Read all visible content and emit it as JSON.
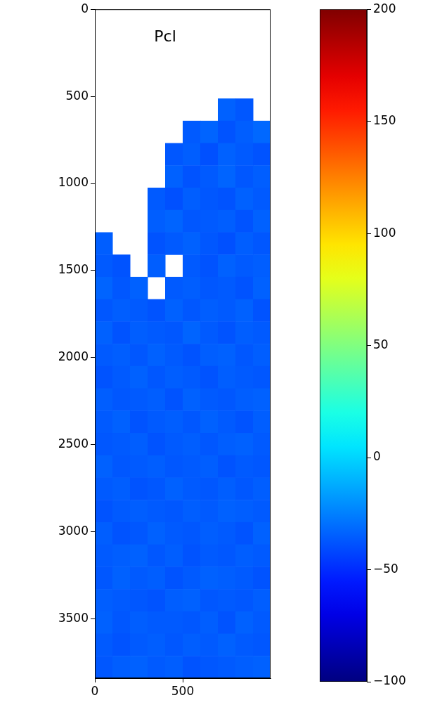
{
  "chart_data": {
    "type": "heatmap",
    "title": "Pcl",
    "x_bins": [
      0,
      100,
      200,
      300,
      400,
      500,
      600,
      700,
      800,
      900,
      1000
    ],
    "y_bins": [
      0,
      128,
      256,
      384,
      512,
      640,
      768,
      896,
      1024,
      1152,
      1280,
      1408,
      1536,
      1664,
      1792,
      1920,
      2048,
      2176,
      2304,
      2432,
      2560,
      2688,
      2816,
      2944,
      3072,
      3200,
      3328,
      3456,
      3584,
      3712,
      3840
    ],
    "cells": [
      [
        null,
        null,
        null,
        null,
        null,
        null,
        null,
        null,
        null,
        null
      ],
      [
        null,
        null,
        null,
        null,
        null,
        null,
        null,
        null,
        null,
        null
      ],
      [
        null,
        null,
        null,
        null,
        null,
        null,
        null,
        null,
        null,
        null
      ],
      [
        null,
        null,
        null,
        null,
        null,
        null,
        null,
        null,
        null,
        null
      ],
      [
        null,
        null,
        null,
        null,
        null,
        null,
        null,
        -34,
        -37,
        null
      ],
      [
        null,
        null,
        null,
        null,
        null,
        -36,
        -33,
        -38,
        -35,
        -32
      ],
      [
        null,
        null,
        null,
        null,
        -37,
        -35,
        -39,
        -34,
        -36,
        -38
      ],
      [
        null,
        null,
        null,
        null,
        -34,
        -38,
        -36,
        -33,
        -37,
        -35
      ],
      [
        null,
        null,
        null,
        -36,
        -39,
        -35,
        -37,
        -38,
        -34,
        -36
      ],
      [
        null,
        null,
        null,
        -35,
        -33,
        -37,
        -36,
        -35,
        -38,
        -34
      ],
      [
        -35,
        null,
        null,
        -38,
        -36,
        -34,
        -37,
        -39,
        -35,
        -37
      ],
      [
        -36,
        -38,
        null,
        -35,
        null,
        -36,
        -38,
        -34,
        -36,
        -35
      ],
      [
        -33,
        -37,
        -34,
        null,
        -36,
        -35,
        -37,
        -36,
        -38,
        -34
      ],
      [
        -37,
        -35,
        -36,
        -38,
        -34,
        -37,
        -35,
        -36,
        -34,
        -38
      ],
      [
        -34,
        -38,
        -35,
        -36,
        -37,
        -33,
        -36,
        -38,
        -35,
        -36
      ],
      [
        -36,
        -35,
        -37,
        -34,
        -36,
        -38,
        -35,
        -34,
        -37,
        -35
      ],
      [
        -38,
        -36,
        -34,
        -37,
        -35,
        -36,
        -38,
        -35,
        -36,
        -37
      ],
      [
        -35,
        -37,
        -36,
        -35,
        -38,
        -34,
        -36,
        -37,
        -35,
        -34
      ],
      [
        -36,
        -34,
        -38,
        -36,
        -35,
        -37,
        -34,
        -36,
        -38,
        -35
      ],
      [
        -37,
        -36,
        -35,
        -38,
        -36,
        -35,
        -37,
        -35,
        -34,
        -36
      ],
      [
        -34,
        -37,
        -36,
        -35,
        -37,
        -36,
        -35,
        -38,
        -36,
        -37
      ],
      [
        -36,
        -35,
        -38,
        -37,
        -34,
        -36,
        -37,
        -35,
        -37,
        -35
      ],
      [
        -38,
        -36,
        -35,
        -36,
        -37,
        -35,
        -36,
        -34,
        -35,
        -36
      ],
      [
        -35,
        -38,
        -37,
        -34,
        -36,
        -37,
        -35,
        -36,
        -38,
        -34
      ],
      [
        -36,
        -35,
        -34,
        -37,
        -35,
        -38,
        -36,
        -37,
        -35,
        -36
      ],
      [
        -37,
        -34,
        -36,
        -35,
        -38,
        -36,
        -34,
        -35,
        -36,
        -38
      ],
      [
        -35,
        -36,
        -37,
        -38,
        -35,
        -34,
        -37,
        -36,
        -37,
        -35
      ],
      [
        -34,
        -37,
        -35,
        -36,
        -36,
        -37,
        -35,
        -38,
        -34,
        -36
      ],
      [
        -36,
        -38,
        -36,
        -35,
        -37,
        -35,
        -36,
        -34,
        -36,
        -37
      ],
      [
        -37,
        -35,
        -34,
        -36,
        -35,
        -38,
        -37,
        -36,
        -35,
        -34
      ]
    ],
    "xlim": [
      0,
      1000
    ],
    "xticks": [
      0,
      500
    ],
    "ylim": [
      3840,
      0
    ],
    "yticks": [
      0,
      500,
      1000,
      1500,
      2000,
      2500,
      3000,
      3500
    ],
    "grid": false,
    "colorbar": {
      "range": [
        -100,
        200
      ],
      "ticks": [
        {
          "value": -100,
          "label": "−100"
        },
        {
          "value": -50,
          "label": "−50"
        },
        0,
        50,
        100,
        150,
        200
      ]
    }
  }
}
